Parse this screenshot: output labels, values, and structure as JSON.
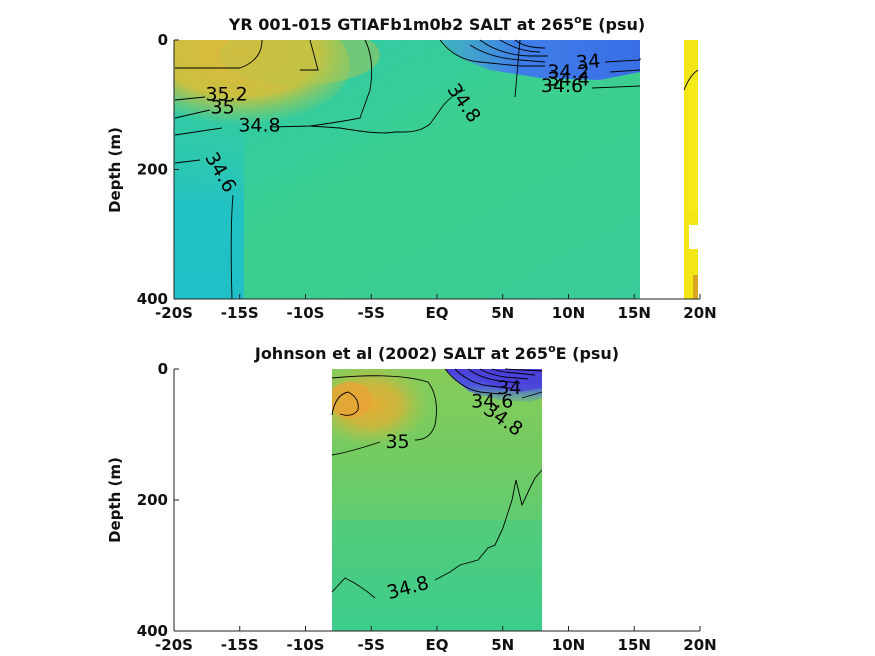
{
  "chart_data": [
    {
      "type": "heatmap",
      "title_main": "YR 001-015 GTIAFb1m0b2 SALT at 265",
      "title_sup": "o",
      "title_tail": "E (psu)",
      "ylabel": "Depth (m)",
      "xlim": [
        -20,
        20
      ],
      "ylim": [
        400,
        0
      ],
      "x_ticks": [
        -20,
        -15,
        -10,
        -5,
        0,
        5,
        10,
        15,
        20
      ],
      "x_tick_labels": [
        "-20S",
        "-15S",
        "-10S",
        "-5S",
        "EQ",
        "5N",
        "10N",
        "15N",
        "20N"
      ],
      "y_ticks": [
        0,
        200,
        400
      ],
      "y_tick_labels": [
        "0",
        "200",
        "400"
      ],
      "colors": {
        "fresh": "#3b6fe8",
        "mid": "#3ccf8e",
        "high": "#c9b53a",
        "salty": "#f0e020"
      },
      "contour_labels": [
        {
          "text": "35.2",
          "x": -16,
          "y": 85
        },
        {
          "text": "35",
          "x": -16.3,
          "y": 105
        },
        {
          "text": "34.8",
          "x": -13.5,
          "y": 133
        },
        {
          "text": "34.6",
          "x": -16.5,
          "y": 205
        },
        {
          "text": "34.8",
          "x": 2,
          "y": 98
        },
        {
          "text": "34",
          "x": 11.5,
          "y": 35
        },
        {
          "text": "34.2",
          "x": 10,
          "y": 50
        },
        {
          "text": "34.4",
          "x": 10,
          "y": 62
        },
        {
          "text": "34.6",
          "x": 9.5,
          "y": 72
        }
      ]
    },
    {
      "type": "heatmap",
      "title_main": "Johnson et al (2002) SALT at 265",
      "title_sup": "o",
      "title_tail": "E (psu)",
      "ylabel": "Depth (m)",
      "xlim": [
        -20,
        20
      ],
      "ylim": [
        400,
        0
      ],
      "data_x_range": [
        -8,
        8
      ],
      "x_ticks": [
        -20,
        -15,
        -10,
        -5,
        0,
        5,
        10,
        15,
        20
      ],
      "x_tick_labels": [
        "-20S",
        "-15S",
        "-10S",
        "-5S",
        "EQ",
        "5N",
        "10N",
        "15N",
        "20N"
      ],
      "y_ticks": [
        0,
        200,
        400
      ],
      "y_tick_labels": [
        "0",
        "200",
        "400"
      ],
      "colors": {
        "fresh": "#4a3fd8",
        "mid": "#74cc66",
        "high": "#c9b53a",
        "low": "#3ccf8e"
      },
      "contour_labels": [
        {
          "text": "34",
          "x": 5.5,
          "y": 30
        },
        {
          "text": "34.6",
          "x": 4.2,
          "y": 50
        },
        {
          "text": "35",
          "x": -3,
          "y": 112
        },
        {
          "text": "34.8",
          "x": 5,
          "y": 78
        },
        {
          "text": "34.8",
          "x": -2.2,
          "y": 335
        }
      ]
    }
  ]
}
